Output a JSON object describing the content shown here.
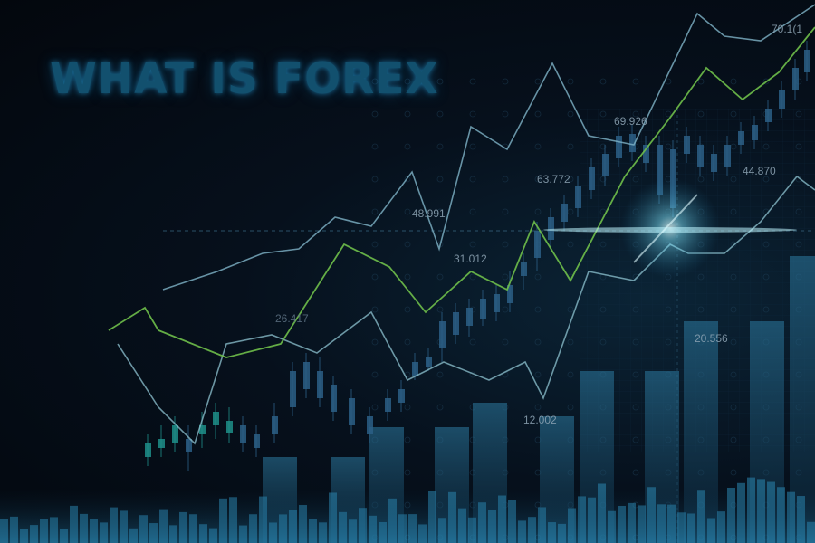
{
  "title": "WHAT IS FOREX",
  "colors": {
    "background": "#050b14",
    "title": "#12506e",
    "green_line": "#6fbf4a",
    "light_line": "#7fb4c8",
    "candle_up": "#1f8f8a",
    "candle_down": "#2c5f86",
    "bars": "#1d5a78",
    "flare": "#9ff2ff"
  },
  "value_labels": [
    {
      "id": "v1",
      "text": "70.1(1"
    },
    {
      "id": "v2",
      "text": "69.926"
    },
    {
      "id": "v3",
      "text": "63.772"
    },
    {
      "id": "v4",
      "text": "44.870"
    },
    {
      "id": "v5",
      "text": "48.991"
    },
    {
      "id": "v6",
      "text": "31.012"
    },
    {
      "id": "v7",
      "text": "26.417"
    },
    {
      "id": "v8",
      "text": "20.556"
    },
    {
      "id": "v9",
      "text": "12.002"
    }
  ]
}
